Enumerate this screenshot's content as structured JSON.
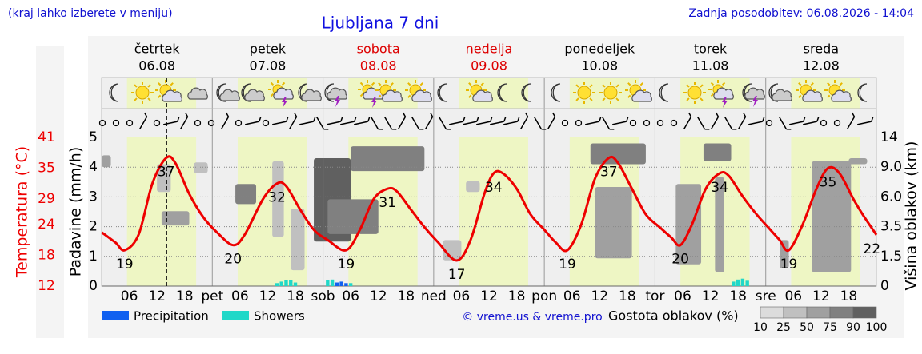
{
  "header": {
    "note": "(kraj lahko izberete v meniju)",
    "updated": "Zadnja posodobitev: 06.08.2026 - 14:04"
  },
  "chart_data": {
    "type": "meteogram",
    "title": "Ljubljana 7 dni",
    "days": [
      {
        "name": "četrtek",
        "date": "06.08",
        "weekend": false
      },
      {
        "name": "petek",
        "date": "07.08",
        "weekend": false
      },
      {
        "name": "sobota",
        "date": "08.08",
        "weekend": true
      },
      {
        "name": "nedelja",
        "date": "09.08",
        "weekend": true
      },
      {
        "name": "ponedeljek",
        "date": "10.08",
        "weekend": false
      },
      {
        "name": "torek",
        "date": "11.08",
        "weekend": false
      },
      {
        "name": "sreda",
        "date": "12.08",
        "weekend": false
      }
    ],
    "daylight_hours": [
      5.5,
      20.5
    ],
    "now_hour": 14.07,
    "xlim": [
      0,
      168
    ],
    "xticks": [
      {
        "value": 6,
        "label": "06"
      },
      12,
      18,
      {
        "value": 24,
        "label": "pet"
      },
      {
        "value": 30,
        "label": "06"
      },
      {
        "value": 36,
        "label": "12"
      },
      {
        "value": 42,
        "label": "18"
      },
      {
        "value": 48,
        "label": "sob"
      },
      {
        "value": 54,
        "label": "06"
      },
      {
        "value": 60,
        "label": "12"
      },
      {
        "value": 66,
        "label": "18"
      },
      {
        "value": 72,
        "label": "ned"
      },
      {
        "value": 78,
        "label": "06"
      },
      {
        "value": 84,
        "label": "12"
      },
      {
        "value": 90,
        "label": "18"
      },
      {
        "value": 96,
        "label": "pon"
      },
      {
        "value": 102,
        "label": "06"
      },
      {
        "value": 108,
        "label": "12"
      },
      {
        "value": 114,
        "label": "18"
      },
      {
        "value": 120,
        "label": "tor"
      },
      {
        "value": 126,
        "label": "06"
      },
      {
        "value": 132,
        "label": "12"
      },
      {
        "value": 138,
        "label": "18"
      },
      {
        "value": 144,
        "label": "sre"
      },
      {
        "value": 150,
        "label": "06"
      },
      {
        "value": 156,
        "label": "12"
      },
      {
        "value": 162,
        "label": "18"
      }
    ],
    "ylabel": "Padavine (mm/h)",
    "ylim": [
      0,
      5
    ],
    "yticks": [
      0,
      1,
      2,
      3,
      4,
      5
    ],
    "grid": true,
    "temp_label": "Temperatura (°C)",
    "temp_lim": [
      12,
      41
    ],
    "temp_ticks": [
      12,
      18,
      24,
      29,
      35,
      41
    ],
    "y2label": "Višina oblakov (km)",
    "y2lim": [
      0,
      14
    ],
    "y2ticks": [
      0,
      1.5,
      3.5,
      {
        "value": 6,
        "label": "6.0"
      },
      {
        "value": 9,
        "label": "9.0"
      },
      14
    ],
    "y2_scale": "piecewise",
    "temperature": {
      "color": "#ee0000",
      "x": [
        0,
        3,
        5,
        8,
        11,
        14,
        16,
        19,
        22,
        25,
        28.5,
        31,
        35,
        38,
        40,
        43,
        46,
        49,
        53,
        56,
        59,
        62,
        64,
        67,
        70,
        73,
        77,
        80,
        83,
        85,
        87,
        90,
        93,
        96,
        98.5,
        101,
        104,
        107,
        110,
        112,
        115,
        118,
        121,
        123.5,
        125.5,
        128,
        131,
        134,
        136,
        139,
        142,
        145,
        147,
        149,
        152,
        155,
        157.5,
        160,
        163,
        165,
        168
      ],
      "values": [
        22.5,
        20.5,
        19,
        22,
        32,
        37,
        36,
        30,
        25.5,
        22.5,
        20,
        22,
        29,
        32,
        31.5,
        27,
        23,
        21,
        19,
        23,
        29,
        31,
        30.5,
        27,
        23.5,
        20.5,
        17,
        21,
        30,
        34,
        34,
        31,
        26,
        23,
        20.5,
        19,
        24,
        33,
        37,
        36,
        31,
        26,
        23.5,
        21.5,
        20,
        24,
        31,
        34,
        33.5,
        29.5,
        26,
        23,
        21,
        19,
        24,
        31,
        35,
        34,
        29,
        26,
        22
      ]
    },
    "temp_extremes": [
      {
        "x": 5,
        "value": 19
      },
      {
        "x": 14,
        "value": 37
      },
      {
        "x": 28.5,
        "value": 20
      },
      {
        "x": 38,
        "value": 32
      },
      {
        "x": 53,
        "value": 19
      },
      {
        "x": 62,
        "value": 31
      },
      {
        "x": 77,
        "value": 17
      },
      {
        "x": 85,
        "value": 34
      },
      {
        "x": 101,
        "value": 19
      },
      {
        "x": 110,
        "value": 37
      },
      {
        "x": 125.5,
        "value": 20
      },
      {
        "x": 134,
        "value": 34
      },
      {
        "x": 149,
        "value": 19
      },
      {
        "x": 157.5,
        "value": 35
      },
      {
        "x": 167,
        "value": 22
      }
    ],
    "series": [
      {
        "name": "Precipitation",
        "color": "#1060f0",
        "x": [
          51,
          52,
          53
        ],
        "values": [
          0.12,
          0.15,
          0.1
        ]
      },
      {
        "name": "Showers",
        "color": "#20d8c8",
        "x": [
          38,
          39,
          40,
          41,
          42,
          49,
          50,
          54,
          137,
          138,
          139,
          140
        ],
        "values": [
          0.1,
          0.15,
          0.2,
          0.2,
          0.12,
          0.2,
          0.22,
          0.1,
          0.15,
          0.22,
          0.25,
          0.18
        ]
      }
    ],
    "clouds": {
      "label": "Gostota oblakov (%)",
      "levels": [
        10,
        25,
        50,
        75,
        90,
        100
      ],
      "colors": [
        "#dcdcdc",
        "#c0c0c0",
        "#a0a0a0",
        "#808080",
        "#606060"
      ],
      "blocks": [
        [
          0,
          2,
          9,
          11,
          50
        ],
        [
          13,
          19,
          3.6,
          4.8,
          50
        ],
        [
          12,
          15,
          6.5,
          9.5,
          25
        ],
        [
          20,
          23,
          8.4,
          9.8,
          25
        ],
        [
          29,
          33.5,
          5.4,
          7.3,
          75
        ],
        [
          37,
          39.5,
          2.8,
          10,
          25
        ],
        [
          41,
          44,
          0.8,
          5,
          25
        ],
        [
          46,
          54,
          2.5,
          10.5,
          90
        ],
        [
          54,
          70,
          8.6,
          12.5,
          75
        ],
        [
          49,
          60,
          3,
          5.8,
          75
        ],
        [
          74,
          78,
          1.3,
          2.6,
          25
        ],
        [
          79,
          82,
          6.5,
          7.6,
          25
        ],
        [
          106,
          118,
          9.5,
          13,
          75
        ],
        [
          107,
          115,
          1.4,
          7,
          50
        ],
        [
          124.5,
          130,
          1.1,
          7.3,
          50
        ],
        [
          130.5,
          136.5,
          10,
          13,
          75
        ],
        [
          133,
          135,
          0.7,
          8,
          50
        ],
        [
          147,
          149,
          0.9,
          2.6,
          50
        ],
        [
          154,
          162.5,
          0.7,
          10,
          50
        ],
        [
          162,
          166,
          9.5,
          10.5,
          50
        ]
      ]
    },
    "credit": "© vreme.us & vreme.pro"
  }
}
